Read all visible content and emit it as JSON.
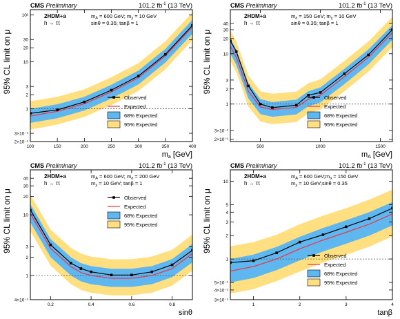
{
  "figure": {
    "background": "#ffffff"
  },
  "chart_data": [
    {
      "type": "line",
      "x_scale": "linear",
      "y_scale": "log",
      "xlim": [
        100,
        400
      ],
      "ylim": [
        0.2,
        130
      ],
      "xlabel_main": "m",
      "xlabel_sub": "a",
      "xlabel_unit": " [GeV]",
      "ylabel": "95% CL limit on μ",
      "experiment": "CMS",
      "status": "Preliminary",
      "lumi": "101.2 fb",
      "lumi_sup": "-1",
      "energy": " (13 TeV)",
      "model": "2HDM+a",
      "channel": "h → ττ",
      "params": [
        "m",
        "A",
        " = 600 GeV; m",
        "χ",
        " = 10 GeV",
        "sinθ = 0.35;",
        "tanβ = 1"
      ],
      "x_ticks": [
        100,
        150,
        200,
        250,
        300,
        350,
        400
      ],
      "x_tick_labels": [
        "100",
        "150",
        "200",
        "250",
        "300",
        "350",
        "400"
      ],
      "y_ticks": [
        0.2,
        0.3,
        1,
        2,
        3,
        10,
        20,
        30,
        100
      ],
      "y_tick_labels": [
        "2×10⁻¹",
        "3×10⁻¹",
        "1",
        "2",
        "3",
        "10",
        "20",
        "30",
        "10²"
      ],
      "reference_line": 1,
      "legend_position": "bottom-right",
      "legend": [
        "Observed",
        "Expected",
        "68% Expected",
        "95% Expected"
      ],
      "x": [
        100,
        150,
        200,
        250,
        300,
        350,
        400
      ],
      "series": [
        {
          "name": "Observed",
          "values": [
            0.8,
            0.95,
            1.4,
            2.5,
            5.0,
            14.5,
            60
          ]
        },
        {
          "name": "Expected",
          "values": [
            0.7,
            0.88,
            1.28,
            2.3,
            4.6,
            13.5,
            56
          ]
        },
        {
          "name": "68% Expected",
          "low": [
            0.5,
            0.63,
            0.92,
            1.65,
            3.3,
            9.7,
            40
          ],
          "high": [
            1.0,
            1.25,
            1.8,
            3.25,
            6.5,
            19,
            79
          ]
        },
        {
          "name": "95% Expected",
          "low": [
            0.36,
            0.46,
            0.67,
            1.2,
            2.4,
            7.0,
            29
          ],
          "high": [
            1.45,
            1.8,
            2.6,
            4.7,
            9.4,
            27.5,
            114
          ]
        }
      ]
    },
    {
      "type": "line",
      "x_scale": "linear",
      "y_scale": "log",
      "xlim": [
        250,
        1600
      ],
      "ylim": [
        0.18,
        75
      ],
      "xlabel_main": "m",
      "xlabel_sub": "A",
      "xlabel_unit": " [GeV]",
      "ylabel": "95% CL limit on μ",
      "experiment": "CMS",
      "status": "Preliminary",
      "lumi": "101.2 fb",
      "lumi_sup": "-1",
      "energy": " (13 TeV)",
      "model": "2HDM+a",
      "channel": "h → ττ",
      "params": [
        "m",
        "a",
        " = 150 GeV; m",
        "χ",
        " = 10 GeV",
        "sinθ = 0.35;",
        "tanβ = 1"
      ],
      "x_ticks": [
        500,
        1000,
        1500
      ],
      "x_tick_labels": [
        "500",
        "1000",
        "1500"
      ],
      "y_ticks": [
        0.2,
        0.3,
        1,
        2,
        3,
        10,
        20,
        30,
        40
      ],
      "y_tick_labels": [
        "2×10⁻¹",
        "3×10⁻¹",
        "1",
        "2",
        "3",
        "10",
        "20",
        "30",
        "40"
      ],
      "reference_line": 1,
      "legend_position": "bottom-right",
      "legend": [
        "Observed",
        "Expected",
        "68% Expected",
        "95% Expected"
      ],
      "x": [
        250,
        300,
        400,
        500,
        600,
        800,
        900,
        1000,
        1200,
        1400,
        1600
      ],
      "series": [
        {
          "name": "Observed",
          "values": [
            18,
            11,
            2.3,
            1.0,
            0.85,
            0.95,
            1.5,
            1.7,
            4.0,
            9.5,
            30
          ]
        },
        {
          "name": "Expected",
          "values": [
            14,
            8.5,
            1.8,
            0.88,
            0.78,
            0.86,
            1.25,
            1.5,
            3.5,
            8.5,
            26
          ]
        },
        {
          "name": "68% Expected",
          "low": [
            10,
            6.0,
            1.3,
            0.63,
            0.56,
            0.62,
            0.9,
            1.08,
            2.5,
            6.1,
            19
          ],
          "high": [
            20,
            12,
            2.6,
            1.25,
            1.1,
            1.22,
            1.8,
            2.15,
            5.0,
            12.2,
            37
          ]
        },
        {
          "name": "95% Expected",
          "low": [
            7.2,
            4.3,
            0.9,
            0.45,
            0.4,
            0.44,
            0.65,
            0.78,
            1.8,
            4.4,
            13.5
          ],
          "high": [
            29,
            17.5,
            3.7,
            1.8,
            1.6,
            1.76,
            2.6,
            3.1,
            7.2,
            17.5,
            54
          ]
        }
      ]
    },
    {
      "type": "line",
      "x_scale": "linear",
      "y_scale": "log",
      "xlim": [
        0.1,
        0.9
      ],
      "ylim": [
        0.4,
        55
      ],
      "xlabel_main": "sinθ",
      "xlabel_sub": "",
      "xlabel_unit": "",
      "ylabel": "95% CL limit on μ",
      "experiment": "CMS",
      "status": "Preliminary",
      "lumi": "101.2 fb",
      "lumi_sup": "-1",
      "energy": " (13 TeV)",
      "model": "2HDM+a",
      "channel": "h → ττ",
      "params": [
        "m",
        "A",
        " = 600 GeV; m",
        "a",
        " = 200 GeV",
        "m",
        "χ",
        " = 10 GeV;",
        "tanβ = 1"
      ],
      "x_ticks": [
        0.2,
        0.4,
        0.6,
        0.8
      ],
      "x_tick_labels": [
        "0.2",
        "0.4",
        "0.6",
        "0.8"
      ],
      "y_ticks": [
        0.4,
        1,
        2,
        3,
        10,
        20,
        30,
        40
      ],
      "y_tick_labels": [
        "4×10⁻¹",
        "1",
        "2",
        "3",
        "10",
        "20",
        "30",
        "40"
      ],
      "reference_line": 1,
      "legend_position": "top-right",
      "legend": [
        "Observed",
        "Expected",
        "68% Expected",
        "95% Expected"
      ],
      "x": [
        0.1,
        0.2,
        0.3,
        0.35,
        0.4,
        0.5,
        0.6,
        0.7,
        0.8,
        0.9
      ],
      "series": [
        {
          "name": "Observed",
          "values": [
            12,
            3.2,
            1.6,
            1.3,
            1.15,
            1.02,
            1.02,
            1.15,
            1.5,
            2.6
          ]
        },
        {
          "name": "Expected",
          "values": [
            10.5,
            2.8,
            1.4,
            1.12,
            1.0,
            0.9,
            0.9,
            1.0,
            1.3,
            2.3
          ]
        },
        {
          "name": "68% Expected",
          "low": [
            7.5,
            2.0,
            1.0,
            0.8,
            0.72,
            0.65,
            0.65,
            0.72,
            0.94,
            1.65
          ],
          "high": [
            15,
            4.0,
            2.0,
            1.6,
            1.43,
            1.29,
            1.29,
            1.43,
            1.86,
            3.3
          ]
        },
        {
          "name": "95% Expected",
          "low": [
            5.4,
            1.45,
            0.72,
            0.58,
            0.52,
            0.47,
            0.47,
            0.52,
            0.68,
            1.2
          ],
          "high": [
            21.5,
            5.7,
            2.85,
            2.3,
            2.05,
            1.85,
            1.85,
            2.05,
            2.65,
            4.7
          ]
        }
      ]
    },
    {
      "type": "line",
      "x_scale": "linear",
      "y_scale": "log",
      "xlim": [
        0.5,
        4.0
      ],
      "ylim": [
        0.3,
        14
      ],
      "xlabel_main": "tanβ",
      "xlabel_sub": "",
      "xlabel_unit": "",
      "ylabel": "95% CL limit on μ",
      "experiment": "CMS",
      "status": "Preliminary",
      "lumi": "101.2 fb",
      "lumi_sup": "-1",
      "energy": " (13 TeV)",
      "model": "2HDM+a",
      "channel": "h → ττ",
      "params": [
        "m",
        "A",
        " = 600 GeV;m",
        "a",
        " = 150 GeV",
        "m",
        "χ",
        " = 10 GeV;",
        "sinθ = 0.35"
      ],
      "x_ticks": [
        1,
        2,
        3,
        4
      ],
      "x_tick_labels": [
        "1",
        "2",
        "3",
        "4"
      ],
      "y_ticks": [
        0.3,
        0.4,
        0.5,
        1,
        2,
        3,
        4,
        5,
        10
      ],
      "y_tick_labels": [
        "3×10⁻¹",
        "4×10⁻¹",
        "5×10⁻¹",
        "1",
        "2",
        "3",
        "4",
        "5",
        "10"
      ],
      "reference_line": 1,
      "legend_position": "bottom-right",
      "legend": [
        "Observed",
        "Expected",
        "68% Expected",
        "95% Expected"
      ],
      "x": [
        0.5,
        1.0,
        1.5,
        2.0,
        2.5,
        3.0,
        3.5,
        4.0
      ],
      "series": [
        {
          "name": "Observed",
          "values": [
            0.9,
            0.95,
            1.2,
            1.65,
            2.05,
            2.6,
            3.3,
            4.5
          ]
        },
        {
          "name": "Expected",
          "values": [
            0.7,
            0.8,
            1.0,
            1.35,
            1.75,
            2.2,
            2.8,
            3.8
          ]
        },
        {
          "name": "68% Expected",
          "low": [
            0.5,
            0.57,
            0.72,
            0.96,
            1.25,
            1.57,
            2.0,
            2.7
          ],
          "high": [
            1.0,
            1.14,
            1.43,
            1.93,
            2.5,
            3.15,
            4.0,
            5.4
          ]
        },
        {
          "name": "95% Expected",
          "low": [
            0.36,
            0.41,
            0.52,
            0.69,
            0.9,
            1.13,
            1.44,
            1.95
          ],
          "high": [
            1.45,
            1.65,
            2.05,
            2.8,
            3.6,
            4.5,
            5.8,
            7.8
          ]
        }
      ]
    }
  ],
  "style": {
    "band_95": "#ffdf7f",
    "band_68": "#5fb7f0",
    "expected_line": "#e8384a",
    "observed_line": "#000000",
    "frame": "#000000",
    "reference_line": "#555555"
  }
}
